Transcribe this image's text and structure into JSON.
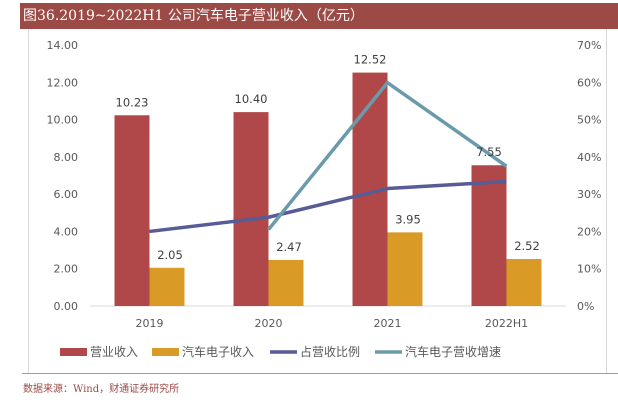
{
  "header": {
    "title": "图36.2019~2022H1 公司汽车电子营业收入（亿元）"
  },
  "footer": {
    "source": "数据来源：Wind，财通证券研究所"
  },
  "chart_data": {
    "type": "bar",
    "title": "图36.2019~2022H1 公司汽车电子营业收入（亿元）",
    "categories": [
      "2019",
      "2020",
      "2021",
      "2022H1"
    ],
    "xlabel": "",
    "ylabel": "",
    "ylim": [
      0,
      14
    ],
    "y_ticks": [
      "0.00",
      "2.00",
      "4.00",
      "6.00",
      "8.00",
      "10.00",
      "12.00",
      "14.00"
    ],
    "y2lim": [
      0,
      70
    ],
    "y2_ticks": [
      "0%",
      "10%",
      "20%",
      "30%",
      "40%",
      "50%",
      "60%",
      "70%"
    ],
    "grid": false,
    "legend_position": "bottom",
    "series": [
      {
        "name": "营业收入",
        "type": "bar",
        "axis": "left",
        "color": "#b0484a",
        "values": [
          10.23,
          10.4,
          12.52,
          7.55
        ],
        "labels": [
          "10.23",
          "10.40",
          "12.52",
          "7.55"
        ]
      },
      {
        "name": "汽车电子收入",
        "type": "bar",
        "axis": "left",
        "color": "#d99b25",
        "values": [
          2.05,
          2.47,
          3.95,
          2.52
        ],
        "labels": [
          "2.05",
          "2.47",
          "3.95",
          "2.52"
        ]
      },
      {
        "name": "占营收比例",
        "type": "line",
        "axis": "right",
        "unit": "%",
        "color": "#575b96",
        "values": [
          20.0,
          23.8,
          31.5,
          33.4
        ]
      },
      {
        "name": "汽车电子营收增速",
        "type": "line",
        "axis": "right",
        "unit": "%",
        "color": "#6b9aab",
        "values": [
          null,
          20.5,
          59.9,
          37.5
        ]
      }
    ]
  }
}
